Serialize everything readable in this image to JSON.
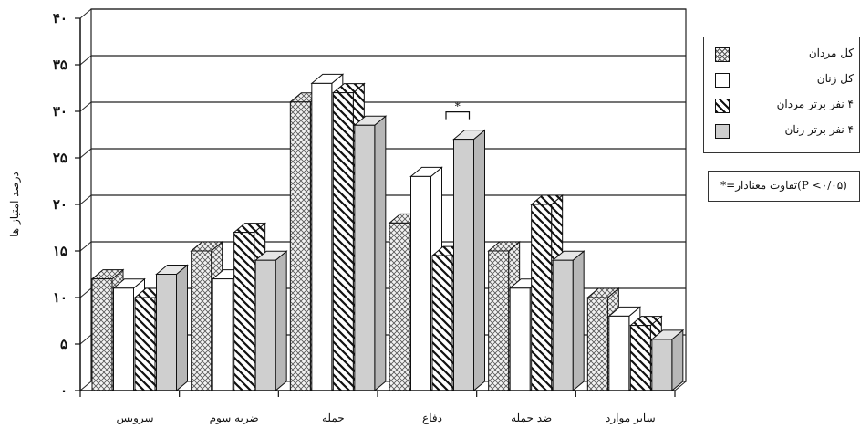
{
  "chart_data": {
    "type": "bar",
    "categories": [
      "سرویس",
      "ضربه سوم",
      "حمله",
      "دفاع",
      "ضد حمله",
      "سایر موارد"
    ],
    "series": [
      {
        "name": "کل مردان",
        "values": [
          12,
          15,
          31,
          18,
          15,
          10
        ],
        "pattern": "crosshatch"
      },
      {
        "name": "کل زنان",
        "values": [
          11,
          12,
          33,
          23,
          11,
          8
        ],
        "pattern": "white"
      },
      {
        "name": "۴ نفر برتر مردان",
        "values": [
          10,
          17,
          32,
          14.5,
          20,
          7
        ],
        "pattern": "diagonal"
      },
      {
        "name": "۴ نفر برتر زنان",
        "values": [
          12.5,
          14,
          28.5,
          27,
          14,
          5.5
        ],
        "pattern": "gray"
      }
    ],
    "yticks": [
      "۰",
      "۵",
      "۱۰",
      "۱۵",
      "۲۰",
      "۲۵",
      "۳۰",
      "۳۵",
      "۴۰"
    ],
    "ylabel": "درصد امتیاز ها",
    "ylim": [
      0,
      40
    ],
    "grid": true,
    "significance_marker": {
      "category": "دفاع",
      "text": "*"
    },
    "legend_position": "top-right",
    "note": "*=تفاوت معنادار(P <۰/۰۵)"
  },
  "colors": {
    "crosshatch_fill": "#eeeeee",
    "gray_fill": "#cfcfcf",
    "gray_top": "#e6e6e6",
    "gray_side": "#b7b7b7",
    "line": "#111111"
  }
}
